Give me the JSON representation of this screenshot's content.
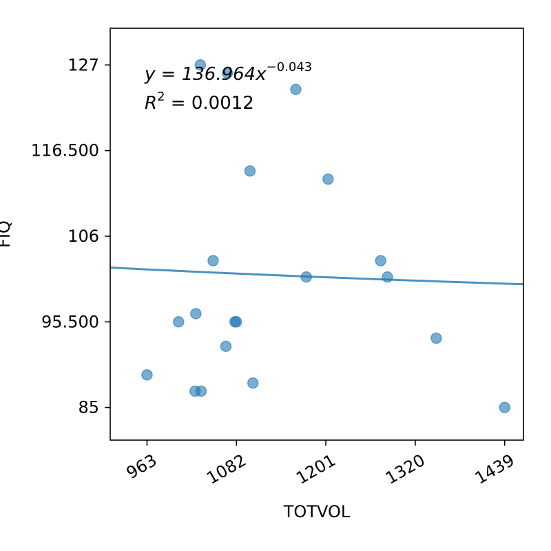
{
  "chart_data": {
    "type": "scatter",
    "xlabel": "TOTVOL",
    "ylabel": "FIQ",
    "xlim": [
      914,
      1464
    ],
    "ylim": [
      81,
      131.5
    ],
    "xticks": [
      963,
      1082,
      1201,
      1320,
      1439
    ],
    "xtick_labels": [
      "963",
      "1082",
      "1201",
      "1320",
      "1439"
    ],
    "yticks": [
      85,
      95.5,
      106,
      116.5,
      127
    ],
    "ytick_labels": [
      "85",
      "95.500",
      "106",
      "116.500",
      "127"
    ],
    "x_tick_rotation": 30,
    "grid": false,
    "points": [
      {
        "x": 963,
        "y": 89
      },
      {
        "x": 1005,
        "y": 95.5
      },
      {
        "x": 1028,
        "y": 96.5
      },
      {
        "x": 1034,
        "y": 127
      },
      {
        "x": 1027,
        "y": 87
      },
      {
        "x": 1035,
        "y": 87
      },
      {
        "x": 1051,
        "y": 103
      },
      {
        "x": 1068,
        "y": 92.5
      },
      {
        "x": 1070,
        "y": 126
      },
      {
        "x": 1080,
        "y": 95.5
      },
      {
        "x": 1082,
        "y": 95.5
      },
      {
        "x": 1100,
        "y": 114
      },
      {
        "x": 1104,
        "y": 88
      },
      {
        "x": 1161,
        "y": 124
      },
      {
        "x": 1175,
        "y": 101
      },
      {
        "x": 1204,
        "y": 113
      },
      {
        "x": 1274,
        "y": 103
      },
      {
        "x": 1283,
        "y": 101
      },
      {
        "x": 1348,
        "y": 93.5
      },
      {
        "x": 1439,
        "y": 85
      }
    ],
    "point_color": "#1f77b4",
    "fit": {
      "label": "y = 136.964x^{-0.043}",
      "a": 136.964,
      "b": -0.043,
      "color": "#1f77b4"
    },
    "annotations": {
      "equation_prefix": "y = 136.964x",
      "equation_exponent": "−0.043",
      "r2_prefix": "R",
      "r2_sup": "2",
      "r2_value": " = 0.0012"
    }
  }
}
